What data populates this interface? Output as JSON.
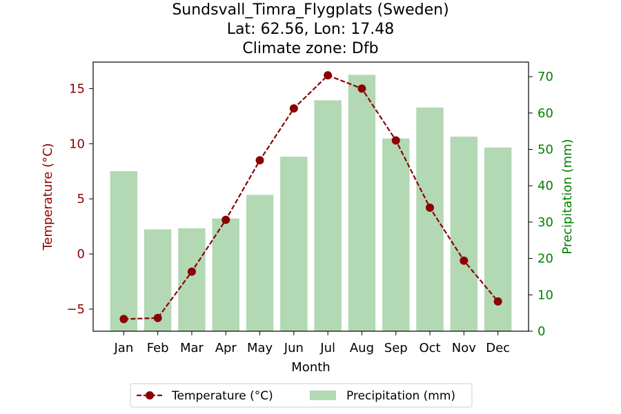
{
  "chart_data": {
    "type": "bar+line",
    "title_lines": [
      "Sundsvall_Timra_Flygplats (Sweden)",
      "Lat: 62.56, Lon: 17.48",
      "Climate zone: Dfb"
    ],
    "xlabel": "Month",
    "ylabel_left": "Temperature (°C)",
    "ylabel_right": "Precipitation (mm)",
    "categories": [
      "Jan",
      "Feb",
      "Mar",
      "Apr",
      "May",
      "Jun",
      "Jul",
      "Aug",
      "Sep",
      "Oct",
      "Nov",
      "Dec"
    ],
    "temperature": {
      "name": "Temperature (°C)",
      "values": [
        -5.9,
        -5.8,
        -1.6,
        3.1,
        8.5,
        13.2,
        16.2,
        15.0,
        10.3,
        4.2,
        -0.6,
        -4.3
      ],
      "color": "#8b0000"
    },
    "precipitation": {
      "name": "Precipitation (mm)",
      "values": [
        44,
        28,
        28.3,
        31,
        37.5,
        48,
        63.5,
        70.5,
        53,
        61.5,
        53.5,
        50.5
      ],
      "color": "#b2d8b4"
    },
    "ylim_left": [
      -7,
      17.4
    ],
    "ylim_right": [
      0,
      74
    ],
    "left_ticks": [
      -5,
      0,
      5,
      10,
      15
    ],
    "right_ticks": [
      0,
      10,
      20,
      30,
      40,
      50,
      60,
      70
    ],
    "left_axis_color": "#8b0000",
    "right_axis_color": "#008000",
    "grid": false,
    "legend_position": "bottom-center"
  }
}
